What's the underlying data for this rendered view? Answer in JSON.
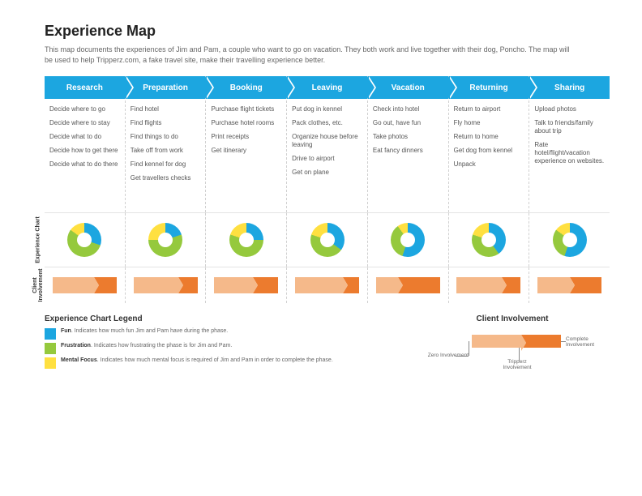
{
  "title": "Experience Map",
  "intro": "This map documents the experiences of Jim and Pam, a couple who want to go on vacation. They both work and live together with their dog, Poncho. The map will be used to help Tripperz.com, a fake travel site, make their travelling experience better.",
  "colors": {
    "header": "#1ca6e0",
    "fun": "#1ca6e0",
    "frustration": "#95c93d",
    "mental": "#ffe040",
    "inv_light": "#f5b98a",
    "inv_dark": "#ec7b2e"
  },
  "phases": [
    {
      "name": "Research",
      "items": [
        "Decide where to go",
        "Decide where to stay",
        "Decide what to do",
        "Decide how to get there",
        "Decide what to do there"
      ],
      "donut": {
        "fun": 30,
        "frustration": 55,
        "mental": 15
      },
      "involvement": {
        "light": 65,
        "dark": 35
      }
    },
    {
      "name": "Preparation",
      "items": [
        "Find hotel",
        "Find flights",
        "Find things to do",
        "Take off from work",
        "Find kennel for dog",
        "Get travellers checks"
      ],
      "donut": {
        "fun": 20,
        "frustration": 55,
        "mental": 25
      },
      "involvement": {
        "light": 70,
        "dark": 30
      }
    },
    {
      "name": "Booking",
      "items": [
        "Purchase flight tickets",
        "Purchase hotel rooms",
        "Print receipts",
        "Get itinerary"
      ],
      "donut": {
        "fun": 25,
        "frustration": 55,
        "mental": 20
      },
      "involvement": {
        "light": 60,
        "dark": 40
      }
    },
    {
      "name": "Leaving",
      "items": [
        "Put dog in kennel",
        "Pack clothes, etc.",
        "Organize house before leaving",
        "Drive to airport",
        "Get on plane"
      ],
      "donut": {
        "fun": 35,
        "frustration": 45,
        "mental": 20
      },
      "involvement": {
        "light": 75,
        "dark": 25
      }
    },
    {
      "name": "Vacation",
      "items": [
        "Check into hotel",
        "Go out, have fun",
        "Take photos",
        "Eat fancy dinners"
      ],
      "donut": {
        "fun": 55,
        "frustration": 35,
        "mental": 10
      },
      "involvement": {
        "light": 35,
        "dark": 65
      }
    },
    {
      "name": "Returning",
      "items": [
        "Return to airport",
        "Fly home",
        "Return to home",
        "Get dog from kennel",
        "Unpack"
      ],
      "donut": {
        "fun": 40,
        "frustration": 40,
        "mental": 20
      },
      "involvement": {
        "light": 70,
        "dark": 30
      }
    },
    {
      "name": "Sharing",
      "items": [
        "Upload photos",
        "Talk to friends/family about trip",
        "Rate hotel/flight/vacation experience on websites."
      ],
      "donut": {
        "fun": 55,
        "frustration": 30,
        "mental": 15
      },
      "involvement": {
        "light": 50,
        "dark": 50
      }
    }
  ],
  "row_labels": {
    "chart": "Experience Chart",
    "involve": "Client\nInvolvement"
  },
  "legend": {
    "title": "Experience Chart Legend",
    "items": [
      {
        "color": "#1ca6e0",
        "name": "Fun",
        "desc": "Indicates how much fun Jim and Pam have during the phase."
      },
      {
        "color": "#95c93d",
        "name": "Frustration",
        "desc": "Indicates how frustrating the phase is for Jim and Pam."
      },
      {
        "color": "#ffe040",
        "name": "Mental Focus",
        "desc": "Indicates how much mental focus is required of Jim and Pam in order to complete the phase."
      }
    ],
    "inv_title": "Client Involvement",
    "inv_labels": {
      "zero": "Zero Involvement",
      "tripperz": "Tripperz Involvement",
      "complete": "Complete Involvement"
    }
  }
}
